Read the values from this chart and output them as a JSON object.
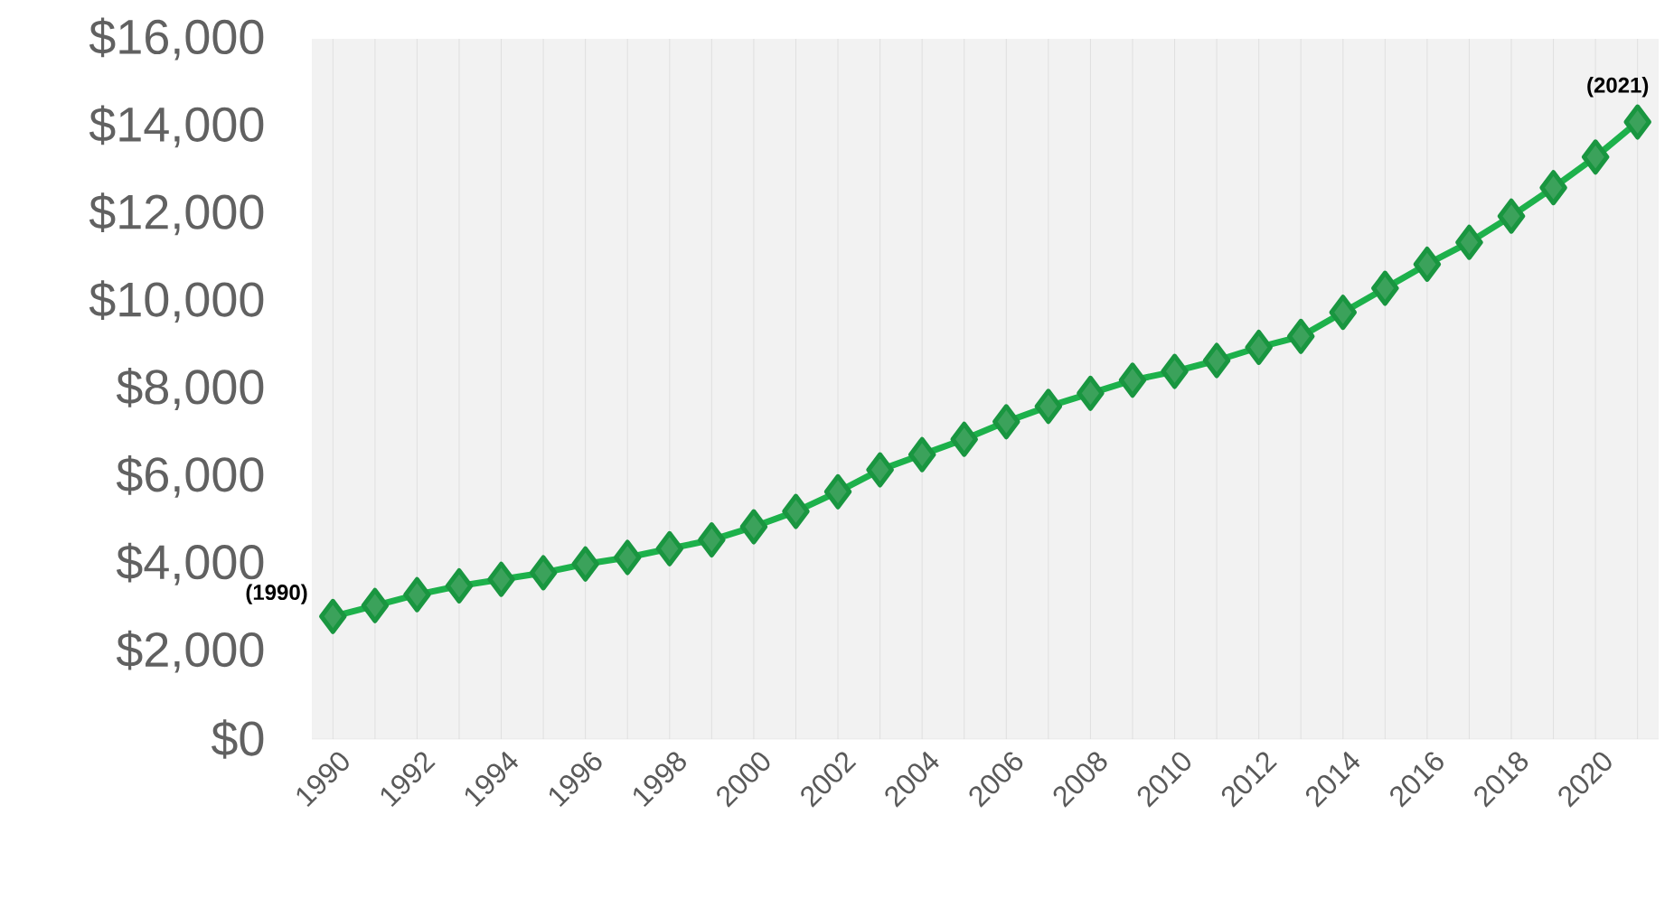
{
  "chart_data": {
    "type": "line",
    "x": [
      1990,
      1991,
      1992,
      1993,
      1994,
      1995,
      1996,
      1997,
      1998,
      1999,
      2000,
      2001,
      2002,
      2003,
      2004,
      2005,
      2006,
      2007,
      2008,
      2009,
      2010,
      2011,
      2012,
      2013,
      2014,
      2015,
      2016,
      2017,
      2018,
      2019,
      2020,
      2021
    ],
    "series": [
      {
        "color": "#1db14b",
        "values": [
          2800,
          3050,
          3300,
          3500,
          3650,
          3800,
          4000,
          4150,
          4350,
          4550,
          4850,
          5200,
          5650,
          6150,
          6500,
          6850,
          7250,
          7600,
          7900,
          8200,
          8400,
          8650,
          8950,
          9200,
          9750,
          10300,
          10850,
          11350,
          11950,
          12600,
          13300,
          14100
        ]
      }
    ],
    "xlim": [
      1989.5,
      2021.5
    ],
    "xticks": [
      1990,
      {
        "value": 1991,
        "label": null
      },
      1992,
      {
        "value": 1993,
        "label": null
      },
      1994,
      {
        "value": 1995,
        "label": null
      },
      1996,
      {
        "value": 1997,
        "label": null
      },
      1998,
      {
        "value": 1999,
        "label": null
      },
      2000,
      {
        "value": 2001,
        "label": null
      },
      2002,
      {
        "value": 2003,
        "label": null
      },
      2004,
      {
        "value": 2005,
        "label": null
      },
      2006,
      {
        "value": 2007,
        "label": null
      },
      2008,
      {
        "value": 2009,
        "label": null
      },
      2010,
      {
        "value": 2011,
        "label": null
      },
      2012,
      {
        "value": 2013,
        "label": null
      },
      2014,
      {
        "value": 2015,
        "label": null
      },
      2016,
      {
        "value": 2017,
        "label": null
      },
      2018,
      {
        "value": 2019,
        "label": null
      },
      2020,
      {
        "value": 2021,
        "label": null
      }
    ],
    "ylim": [
      0,
      16000
    ],
    "yticks": [
      {
        "value": 0,
        "label": "$0"
      },
      {
        "value": 2000,
        "label": "$2,000"
      },
      {
        "value": 4000,
        "label": "$4,000"
      },
      {
        "value": 6000,
        "label": "$6,000"
      },
      {
        "value": 8000,
        "label": "$8,000"
      },
      {
        "value": 10000,
        "label": "$10,000"
      },
      {
        "value": 12000,
        "label": "$12,000"
      },
      {
        "value": 14000,
        "label": "$14,000"
      },
      {
        "value": 16000,
        "label": "$16,000"
      }
    ],
    "grid": "x",
    "marker": "diamond",
    "line_style": "solid",
    "annotations": [
      {
        "text": "(1990)",
        "x": 1990,
        "y": 2800
      },
      {
        "text": "(2021)",
        "x": 2021,
        "y": 14100
      }
    ]
  }
}
